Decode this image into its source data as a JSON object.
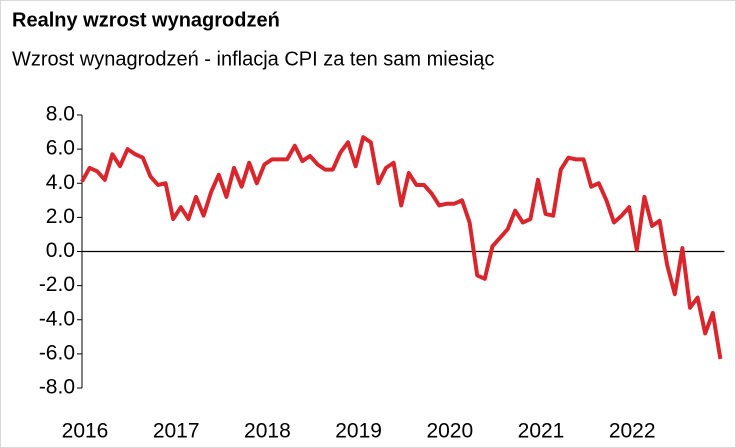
{
  "chart_data": {
    "type": "line",
    "title": "Realny wzrost wynagrodzeń",
    "subtitle": "Wzrost wynagrodzeń - inflacja CPI za ten sam miesiąc",
    "categories": [
      "2016",
      null,
      null,
      null,
      null,
      null,
      null,
      null,
      null,
      null,
      null,
      null,
      "2017",
      null,
      null,
      null,
      null,
      null,
      null,
      null,
      null,
      null,
      null,
      null,
      "2018",
      null,
      null,
      null,
      null,
      null,
      null,
      null,
      null,
      null,
      null,
      null,
      "2019",
      null,
      null,
      null,
      null,
      null,
      null,
      null,
      null,
      null,
      null,
      null,
      "2020",
      null,
      null,
      null,
      null,
      null,
      null,
      null,
      null,
      null,
      null,
      null,
      "2021",
      null,
      null,
      null,
      null,
      null,
      null,
      null,
      null,
      null,
      null,
      null,
      "2022",
      null,
      null,
      null,
      null,
      null,
      null,
      null,
      null,
      null,
      null,
      null,
      null
    ],
    "series": [
      {
        "color": "#d9262c",
        "values": [
          4.1,
          4.9,
          4.7,
          4.2,
          5.7,
          5.0,
          6.0,
          5.7,
          5.5,
          4.4,
          3.9,
          4.0,
          1.9,
          2.6,
          1.9,
          3.2,
          2.1,
          3.5,
          4.5,
          3.2,
          4.9,
          3.8,
          5.2,
          4.0,
          5.1,
          5.4,
          5.4,
          5.4,
          6.2,
          5.3,
          5.6,
          5.1,
          4.8,
          4.8,
          5.8,
          6.4,
          5.0,
          6.7,
          6.4,
          4.0,
          4.9,
          5.2,
          2.7,
          4.6,
          3.9,
          3.9,
          3.4,
          2.7,
          2.8,
          2.8,
          3.0,
          1.7,
          -1.4,
          -1.6,
          0.3,
          0.8,
          1.3,
          2.4,
          1.7,
          1.9,
          4.2,
          2.2,
          2.1,
          4.8,
          5.5,
          5.4,
          5.4,
          3.8,
          4.0,
          3.0,
          1.7,
          2.1,
          2.6,
          0.1,
          3.2,
          1.5,
          1.8,
          -0.8,
          -2.5,
          0.2,
          -3.3,
          -2.7,
          -4.8,
          -3.6,
          -6.3
        ]
      }
    ],
    "ylim": [
      -8,
      8
    ],
    "yticks": [
      {
        "value": 8,
        "label": "8.0"
      },
      {
        "value": 6,
        "label": "6.0"
      },
      {
        "value": 4,
        "label": "4.0"
      },
      {
        "value": 2,
        "label": "2.0"
      },
      {
        "value": 0,
        "label": "0.0"
      },
      {
        "value": -2,
        "label": "-2.0"
      },
      {
        "value": -4,
        "label": "-4.0"
      },
      {
        "value": -6,
        "label": "-6.0"
      },
      {
        "value": -8,
        "label": "-8.0"
      }
    ],
    "zero_line": true
  }
}
